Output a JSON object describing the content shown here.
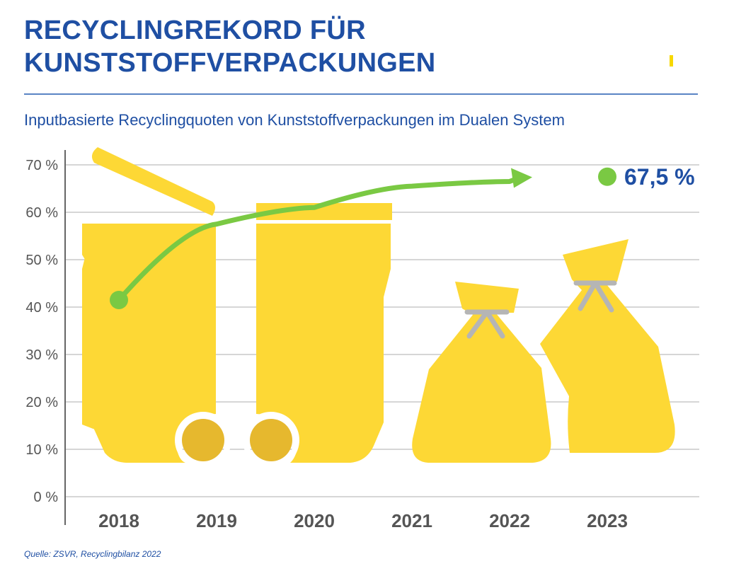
{
  "header": {
    "title_line1": "RECYCLINGREKORD FÜR",
    "title_line2": "KUNSTSTOFFVERPACKUNGEN",
    "subtitle": "Inputbasierte Recyclingquoten von Kunststoffverpackungen im Dualen System"
  },
  "footer": {
    "source": "Quelle: ZSVR, Recyclingbilanz 2022"
  },
  "colors": {
    "title": "#1f4fa3",
    "axis_text": "#555555",
    "line": "#7ac943",
    "illustration": "#fdd835",
    "wheel": "#e6b82e",
    "tie": "#b5b5b5",
    "grid": "#c8c8c8"
  },
  "chart_data": {
    "type": "line",
    "title": "Inputbasierte Recyclingquoten von Kunststoffverpackungen im Dualen System",
    "categories": [
      "2018",
      "2019",
      "2020",
      "2021",
      "2022",
      "2023"
    ],
    "series": [
      {
        "values": [
          41.5,
          57.5,
          61.0,
          65.5,
          66.5,
          null
        ]
      }
    ],
    "highlight": {
      "category": "2023",
      "value": 67.5,
      "label": "67,5 %"
    },
    "y_ticks": [
      "0 %",
      "10 %",
      "20 %",
      "30 %",
      "40 %",
      "50 %",
      "60 %",
      "70 %"
    ],
    "ylim": [
      0,
      70
    ],
    "grid": true,
    "background_icons": [
      "bin-icon",
      "bin-icon",
      "sack-icon",
      "sack-icon"
    ]
  }
}
